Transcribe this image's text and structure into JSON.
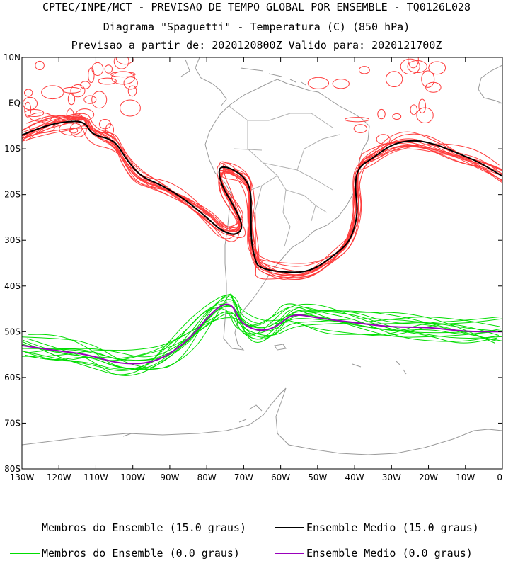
{
  "titles": {
    "line1": "CPTEC/INPE/MCT - PREVISAO DE TEMPO GLOBAL POR ENSEMBLE - TQ0126L028",
    "line2": "Diagrama \"Spaguetti\" - Temperatura (C) (850 hPa)",
    "line3": "Previsao a partir de: 2020120800Z  Valido para: 2020121700Z"
  },
  "map": {
    "lat_ticks": [
      "10N",
      "EQ",
      "10S",
      "20S",
      "30S",
      "40S",
      "50S",
      "60S",
      "70S",
      "80S"
    ],
    "lon_ticks": [
      "130W",
      "120W",
      "110W",
      "100W",
      "90W",
      "80W",
      "70W",
      "60W",
      "50W",
      "40W",
      "30W",
      "20W",
      "10W",
      "0"
    ],
    "extent": {
      "lon_min": -130,
      "lon_max": 0,
      "lat_min": -80,
      "lat_max": 10
    }
  },
  "contours": {
    "ensemble_15": {
      "name": "Membros do Ensemble (15.0 graus)",
      "color": "#ff3c3c",
      "members": 14
    },
    "mean_15": {
      "name": "Ensemble Medio (15.0 graus)",
      "color": "#000000",
      "line": [
        [
          -130,
          -7
        ],
        [
          -124,
          -5
        ],
        [
          -118,
          -4
        ],
        [
          -113,
          -4
        ],
        [
          -111,
          -7
        ],
        [
          -105,
          -8
        ],
        [
          -102,
          -12
        ],
        [
          -98,
          -16
        ],
        [
          -92,
          -18
        ],
        [
          -86,
          -21
        ],
        [
          -80,
          -25
        ],
        [
          -76,
          -28
        ],
        [
          -72,
          -29
        ],
        [
          -70,
          -27
        ],
        [
          -73,
          -22
        ],
        [
          -76,
          -18
        ],
        [
          -77,
          -14
        ],
        [
          -74,
          -14
        ],
        [
          -70,
          -16
        ],
        [
          -68,
          -19
        ],
        [
          -68,
          -24
        ],
        [
          -68,
          -30
        ],
        [
          -67,
          -34
        ],
        [
          -66,
          -36
        ],
        [
          -60,
          -37
        ],
        [
          -52,
          -37
        ],
        [
          -45,
          -33
        ],
        [
          -41,
          -30
        ],
        [
          -39,
          -24
        ],
        [
          -40,
          -18
        ],
        [
          -39,
          -14
        ],
        [
          -35,
          -12
        ],
        [
          -30,
          -9
        ],
        [
          -24,
          -8
        ],
        [
          -18,
          -9
        ],
        [
          -12,
          -11
        ],
        [
          -6,
          -13
        ],
        [
          0,
          -16
        ]
      ]
    },
    "ensemble_0": {
      "name": "Membros do Ensemble (0.0 graus)",
      "color": "#00dd00",
      "members": 14
    },
    "mean_0": {
      "name": "Ensemble Medio (0.0 graus)",
      "color": "#9900bb",
      "line": [
        [
          -130,
          -53
        ],
        [
          -122,
          -54
        ],
        [
          -112,
          -55
        ],
        [
          -104,
          -57
        ],
        [
          -96,
          -57
        ],
        [
          -90,
          -55
        ],
        [
          -84,
          -51
        ],
        [
          -80,
          -47
        ],
        [
          -76,
          -44
        ],
        [
          -73,
          -44
        ],
        [
          -71,
          -48
        ],
        [
          -66,
          -50
        ],
        [
          -61,
          -49
        ],
        [
          -57,
          -46
        ],
        [
          -50,
          -47
        ],
        [
          -40,
          -48
        ],
        [
          -30,
          -49
        ],
        [
          -20,
          -49
        ],
        [
          -10,
          -50
        ],
        [
          0,
          -50
        ]
      ]
    }
  },
  "legend": {
    "members_15": "Membros do Ensemble (15.0 graus)",
    "mean_15": "Ensemble Medio (15.0 graus)",
    "members_0": "Membros do Ensemble (0.0 graus)",
    "mean_0": "Ensemble Medio (0.0 graus)"
  }
}
